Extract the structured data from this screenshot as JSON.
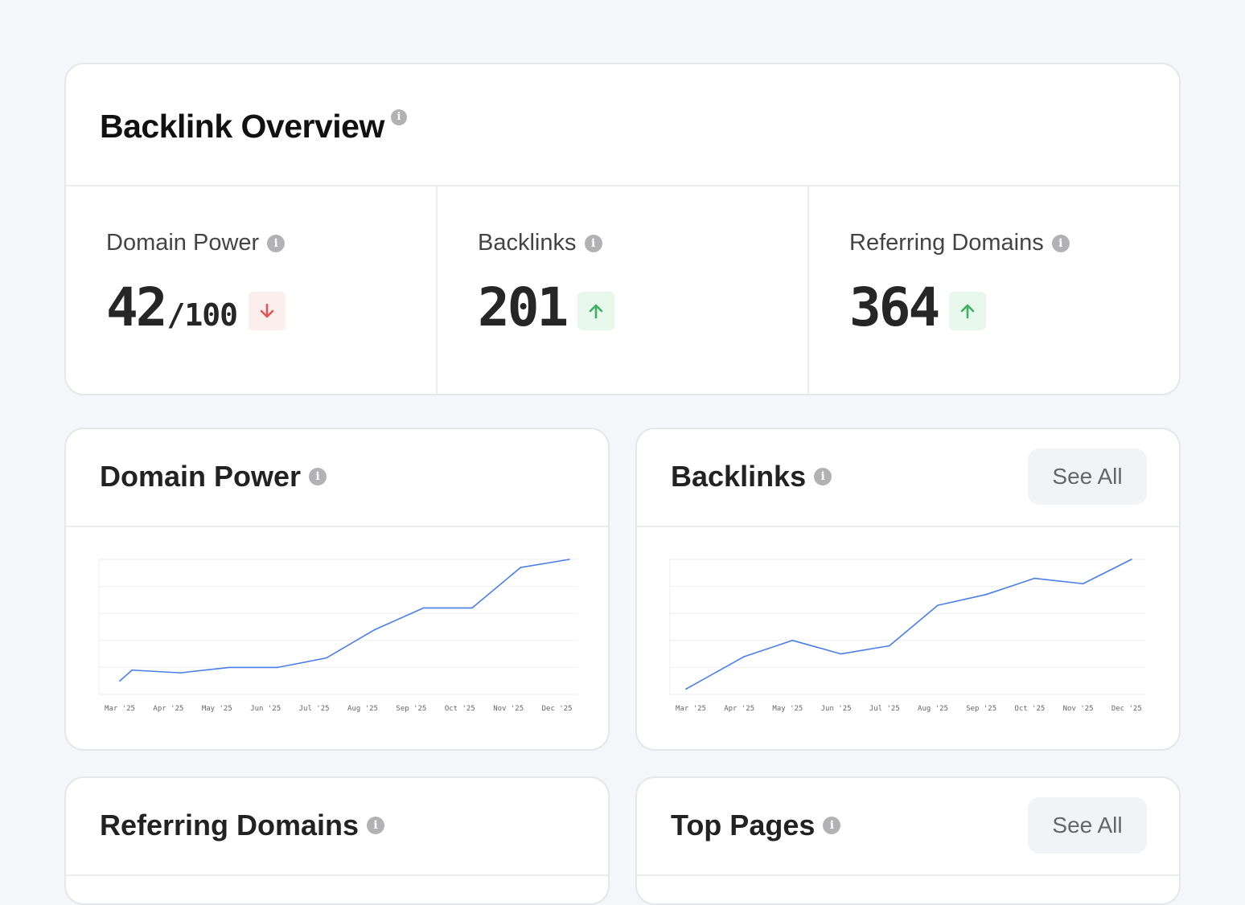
{
  "overview": {
    "title": "Backlink Overview",
    "stats": [
      {
        "label": "Domain Power",
        "value": "42",
        "suffix": "/100",
        "trend": "down"
      },
      {
        "label": "Backlinks",
        "value": "201",
        "suffix": "",
        "trend": "up"
      },
      {
        "label": "Referring Domains",
        "value": "364",
        "suffix": "",
        "trend": "up"
      }
    ]
  },
  "cards": {
    "domain_power": {
      "title": "Domain Power"
    },
    "backlinks": {
      "title": "Backlinks",
      "see_all": "See All"
    },
    "referring_domains": {
      "title": "Referring Domains"
    },
    "top_pages": {
      "title": "Top Pages",
      "see_all": "See All"
    }
  },
  "colors": {
    "line": "#4a7ee8",
    "down": "#e25555",
    "up": "#3fae62",
    "grid": "#eeeeee"
  },
  "chart_data": [
    {
      "type": "line",
      "title": "Domain Power",
      "categories": [
        "Mar '25",
        "Apr '25",
        "May '25",
        "Jun '25",
        "Jul '25",
        "Aug '25",
        "Sep '25",
        "Oct '25",
        "Nov '25",
        "Dec '25"
      ],
      "x": [
        0,
        0.25,
        1.25,
        2.25,
        3.25,
        4.25,
        5.25,
        6.25,
        7.25,
        8.25,
        9.25
      ],
      "values": [
        5,
        9,
        8,
        10,
        10,
        13.5,
        24,
        32,
        32,
        47,
        50
      ],
      "ylim": [
        0,
        50
      ],
      "grid": true
    },
    {
      "type": "line",
      "title": "Backlinks",
      "categories": [
        "Mar '25",
        "Apr '25",
        "May '25",
        "Jun '25",
        "Jul '25",
        "Aug '25",
        "Sep '25",
        "Oct '25",
        "Nov '25",
        "Dec '25"
      ],
      "x": [
        -0.1,
        1.1,
        2.1,
        3.1,
        4.1,
        5.1,
        6.1,
        7.1,
        8.1,
        9.1
      ],
      "values": [
        2,
        14,
        20,
        15,
        18,
        33,
        37,
        43,
        41,
        50
      ],
      "ylim": [
        0,
        50
      ],
      "grid": true
    }
  ]
}
